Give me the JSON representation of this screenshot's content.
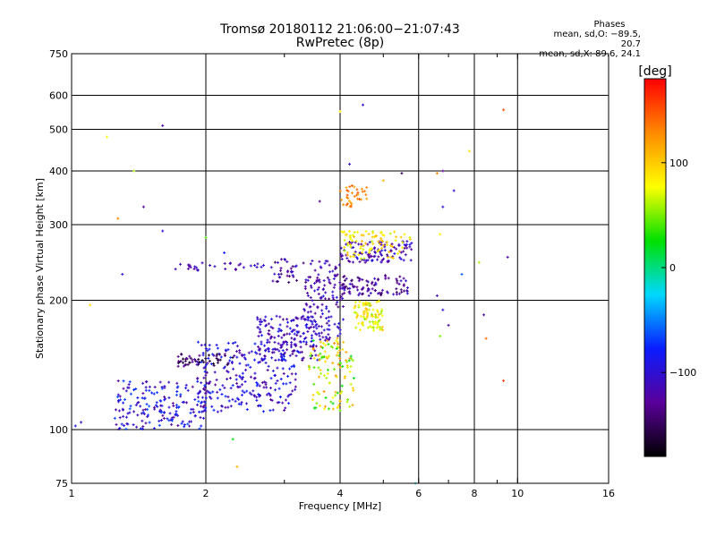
{
  "header": {
    "title_line1": "Tromsø 20180112 21:06:00−21:07:43",
    "title_line2": "RwPretec (8p)",
    "stats_title": "Phases",
    "stats_o": "mean, sd,O: −89.5, 20.7",
    "stats_x": "mean, sd,X:  89.6, 24.1"
  },
  "colorbar": {
    "label": "[deg]",
    "ticks": [
      {
        "value": 100,
        "label": "100"
      },
      {
        "value": 0,
        "label": "0"
      },
      {
        "value": -100,
        "label": "−100"
      }
    ],
    "range": [
      -180,
      180
    ],
    "colors": [
      "#000000",
      "#5a009a",
      "#0a1cff",
      "#00d8ff",
      "#00e000",
      "#ffff00",
      "#ff8a00",
      "#ff0000"
    ]
  },
  "chart_data": {
    "type": "scatter",
    "title": "Tromsø 20180112 21:06:00−21:07:43",
    "subtitle": "RwPretec (8p)",
    "xlabel": "Frequency [MHz]",
    "ylabel": "Stationary phase Virtual Height [km]",
    "xscale": "log",
    "yscale": "log",
    "xlim": [
      1,
      16
    ],
    "ylim": [
      75,
      750
    ],
    "x_ticks": [
      1,
      2,
      4,
      6,
      8,
      10,
      16
    ],
    "x_tick_labels": [
      "1",
      "2",
      "4",
      "6",
      "8",
      "10",
      "16"
    ],
    "x_minor_ticks": [
      3,
      5,
      7,
      9
    ],
    "y_ticks": [
      75,
      100,
      200,
      300,
      400,
      500,
      600,
      750
    ],
    "y_tick_labels": [
      "75",
      "100",
      "200",
      "300",
      "400",
      "500",
      "600",
      "750"
    ],
    "grid": true,
    "clusters": [
      {
        "name": "",
        "x_range": [
          1.25,
          2.0
        ],
        "h_range": [
          100,
          130
        ],
        "phase_range": [
          -130,
          -60
        ],
        "count": 180
      },
      {
        "name": "",
        "x_range": [
          1.9,
          3.2
        ],
        "h_range": [
          110,
          160
        ],
        "phase_range": [
          -130,
          -70
        ],
        "count": 260
      },
      {
        "name": "",
        "x_range": [
          2.6,
          3.6
        ],
        "h_range": [
          145,
          185
        ],
        "phase_range": [
          -140,
          -80
        ],
        "count": 160
      },
      {
        "name": "",
        "x_range": [
          1.7,
          2.3
        ],
        "h_range": [
          140,
          150
        ],
        "phase_range": [
          -170,
          -120
        ],
        "count": 50
      },
      {
        "name": "",
        "x_range": [
          3.3,
          4.1
        ],
        "h_range": [
          160,
          220
        ],
        "phase_range": [
          -140,
          -90
        ],
        "count": 110
      },
      {
        "name": "",
        "x_range": [
          3.4,
          4.3
        ],
        "h_range": [
          110,
          165
        ],
        "phase_range": [
          20,
          130
        ],
        "count": 120
      },
      {
        "name": "",
        "x_range": [
          4.3,
          5.0
        ],
        "h_range": [
          170,
          200
        ],
        "phase_range": [
          50,
          110
        ],
        "count": 90
      },
      {
        "name": "",
        "x_range": [
          4.0,
          5.7
        ],
        "h_range": [
          205,
          230
        ],
        "phase_range": [
          -150,
          -100
        ],
        "count": 90
      },
      {
        "name": "",
        "x_range": [
          4.0,
          5.8
        ],
        "h_range": [
          245,
          275
        ],
        "phase_range": [
          -140,
          -90
        ],
        "count": 110
      },
      {
        "name": "",
        "x_range": [
          4.0,
          5.8
        ],
        "h_range": [
          250,
          290
        ],
        "phase_range": [
          60,
          110
        ],
        "count": 90
      },
      {
        "name": "",
        "x_range": [
          4.0,
          4.6
        ],
        "h_range": [
          330,
          370
        ],
        "phase_range": [
          110,
          150
        ],
        "count": 35
      },
      {
        "name": "",
        "x_range": [
          2.8,
          4.0
        ],
        "h_range": [
          220,
          250
        ],
        "phase_range": [
          -150,
          -100
        ],
        "count": 70
      },
      {
        "name": "",
        "x_range": [
          1.7,
          2.8
        ],
        "h_range": [
          235,
          245
        ],
        "phase_range": [
          -130,
          -100
        ],
        "count": 30
      }
    ],
    "isolated_points": [
      {
        "x": 1.02,
        "h": 102,
        "phase": -90
      },
      {
        "x": 1.05,
        "h": 104,
        "phase": -100
      },
      {
        "x": 1.1,
        "h": 195,
        "phase": 90
      },
      {
        "x": 1.2,
        "h": 480,
        "phase": 80
      },
      {
        "x": 1.27,
        "h": 310,
        "phase": 130
      },
      {
        "x": 1.3,
        "h": 230,
        "phase": -100
      },
      {
        "x": 1.38,
        "h": 400,
        "phase": 60
      },
      {
        "x": 1.45,
        "h": 330,
        "phase": -130
      },
      {
        "x": 1.6,
        "h": 510,
        "phase": -120
      },
      {
        "x": 1.6,
        "h": 290,
        "phase": -100
      },
      {
        "x": 2.0,
        "h": 280,
        "phase": 40
      },
      {
        "x": 2.2,
        "h": 258,
        "phase": -80
      },
      {
        "x": 2.3,
        "h": 95,
        "phase": 20
      },
      {
        "x": 2.35,
        "h": 82,
        "phase": 110
      },
      {
        "x": 3.6,
        "h": 340,
        "phase": -140
      },
      {
        "x": 4.2,
        "h": 415,
        "phase": -100
      },
      {
        "x": 4.0,
        "h": 550,
        "phase": 80
      },
      {
        "x": 4.5,
        "h": 570,
        "phase": -100
      },
      {
        "x": 5.0,
        "h": 380,
        "phase": 110
      },
      {
        "x": 5.5,
        "h": 395,
        "phase": -150
      },
      {
        "x": 6.6,
        "h": 395,
        "phase": 130
      },
      {
        "x": 6.8,
        "h": 400,
        "phase": -130
      },
      {
        "x": 6.8,
        "h": 330,
        "phase": -100
      },
      {
        "x": 6.7,
        "h": 285,
        "phase": 80
      },
      {
        "x": 6.6,
        "h": 205,
        "phase": -110
      },
      {
        "x": 6.8,
        "h": 190,
        "phase": -100
      },
      {
        "x": 6.7,
        "h": 165,
        "phase": 50
      },
      {
        "x": 7.0,
        "h": 175,
        "phase": -120
      },
      {
        "x": 7.2,
        "h": 360,
        "phase": -100
      },
      {
        "x": 7.5,
        "h": 230,
        "phase": -60
      },
      {
        "x": 7.8,
        "h": 445,
        "phase": 90
      },
      {
        "x": 8.2,
        "h": 245,
        "phase": 60
      },
      {
        "x": 8.4,
        "h": 185,
        "phase": -120
      },
      {
        "x": 8.5,
        "h": 163,
        "phase": 140
      },
      {
        "x": 9.3,
        "h": 555,
        "phase": 150
      },
      {
        "x": 9.3,
        "h": 130,
        "phase": 160
      },
      {
        "x": 9.5,
        "h": 252,
        "phase": -120
      },
      {
        "x": 5.9,
        "h": 75,
        "phase": -20
      }
    ]
  }
}
